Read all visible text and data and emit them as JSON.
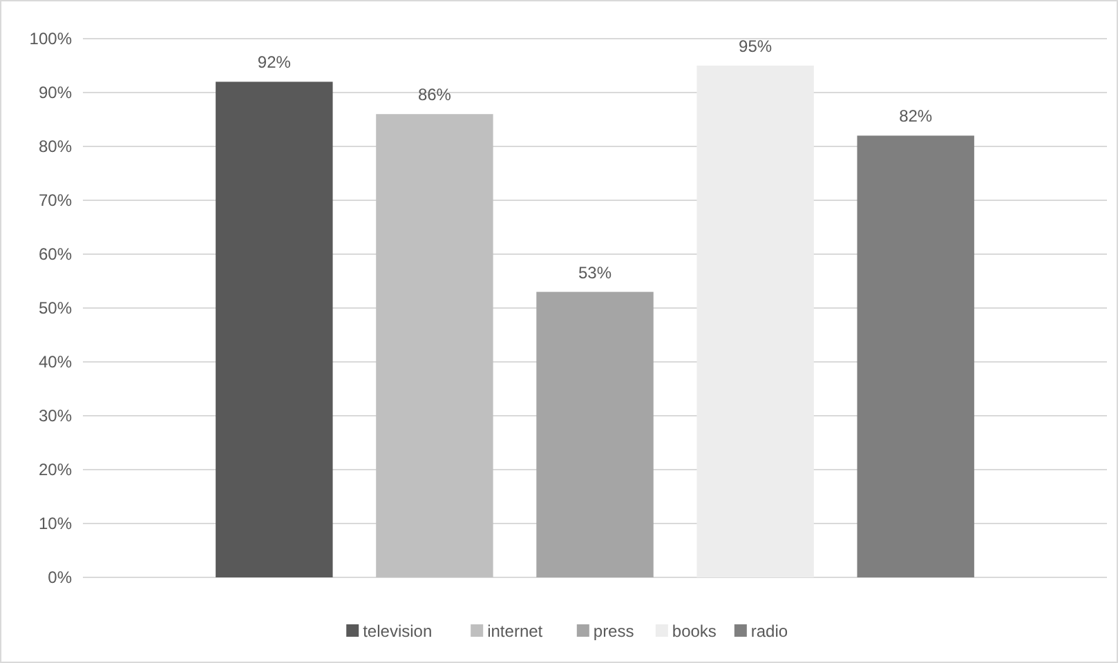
{
  "chart_data": {
    "type": "bar",
    "categories": [
      null
    ],
    "series": [
      {
        "name": "television",
        "color": "#595959",
        "values": [
          92
        ],
        "value_labels": [
          "92%"
        ]
      },
      {
        "name": "internet",
        "color": "#bfbfbf",
        "values": [
          86
        ],
        "value_labels": [
          "86%"
        ]
      },
      {
        "name": "press",
        "color": "#a5a5a5",
        "values": [
          53
        ],
        "value_labels": [
          "53%"
        ]
      },
      {
        "name": "books",
        "color": "#ededed",
        "values": [
          95
        ],
        "value_labels": [
          "95%"
        ]
      },
      {
        "name": "radio",
        "color": "#7f7f7f",
        "values": [
          82
        ],
        "value_labels": [
          "82%"
        ]
      }
    ],
    "ylim": [
      0,
      100
    ],
    "yticks": [
      {
        "value": 0,
        "label": "0%"
      },
      {
        "value": 10,
        "label": "10%"
      },
      {
        "value": 20,
        "label": "20%"
      },
      {
        "value": 30,
        "label": "30%"
      },
      {
        "value": 40,
        "label": "40%"
      },
      {
        "value": 50,
        "label": "50%"
      },
      {
        "value": 60,
        "label": "60%"
      },
      {
        "value": 70,
        "label": "70%"
      },
      {
        "value": 80,
        "label": "80%"
      },
      {
        "value": 90,
        "label": "90%"
      },
      {
        "value": 100,
        "label": "100%"
      }
    ],
    "grid": "y",
    "legend": "bottom"
  }
}
